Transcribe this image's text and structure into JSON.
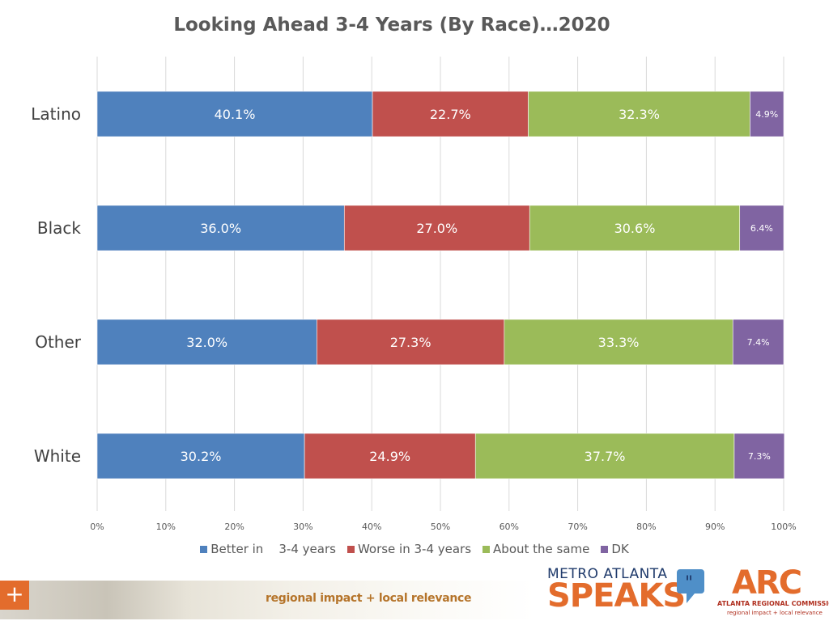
{
  "chart_data": {
    "type": "bar",
    "orientation": "horizontal",
    "stacked": true,
    "title": "Looking Ahead 3-4 Years (By Race)…2020",
    "categories": [
      "Latino",
      "Black",
      "Other",
      "White"
    ],
    "series": [
      {
        "name": "Better in    3-4 years",
        "color": "#4f81bd",
        "values": [
          40.1,
          36.0,
          32.0,
          30.2
        ],
        "labels": [
          "40.1%",
          "36.0%",
          "32.0%",
          "30.2%"
        ]
      },
      {
        "name": "Worse in 3-4 years",
        "color": "#c0504d",
        "values": [
          22.7,
          27.0,
          27.3,
          24.9
        ],
        "labels": [
          "22.7%",
          "27.0%",
          "27.3%",
          "24.9%"
        ]
      },
      {
        "name": "About the same",
        "color": "#9bbb59",
        "values": [
          32.3,
          30.6,
          33.3,
          37.7
        ],
        "labels": [
          "32.3%",
          "30.6%",
          "33.3%",
          "37.7%"
        ]
      },
      {
        "name": "DK",
        "color": "#8064a2",
        "values": [
          4.9,
          6.4,
          7.4,
          7.3
        ],
        "labels": [
          "4.9%",
          "6.4%",
          "7.4%",
          "7.3%"
        ]
      }
    ],
    "x_ticks": [
      "0%",
      "10%",
      "20%",
      "30%",
      "40%",
      "50%",
      "60%",
      "70%",
      "80%",
      "90%",
      "100%"
    ],
    "xlim": [
      0,
      100
    ],
    "xlabel": "",
    "ylabel": "",
    "grid": true,
    "legend_position": "bottom"
  },
  "footer": {
    "tagline": "regional impact + local relevance",
    "plus_symbol": "+"
  },
  "logos": {
    "metro_atlanta": "METRO ATLANTA",
    "speaks": "SPEAKS",
    "arc": "ARC",
    "arc_name": "ATLANTA REGIONAL COMMISSION",
    "arc_tagline": "regional impact + local relevance"
  }
}
